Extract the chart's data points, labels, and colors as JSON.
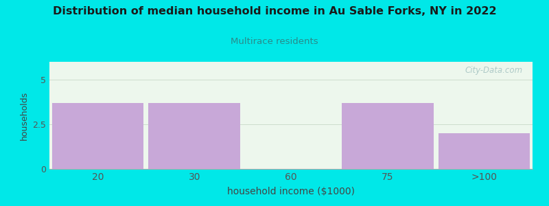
{
  "title": "Distribution of median household income in Au Sable Forks, NY in 2022",
  "subtitle": "Multirace residents",
  "xlabel": "household income ($1000)",
  "ylabel": "households",
  "categories": [
    "20",
    "30",
    "60",
    "75",
    ">100"
  ],
  "values": [
    3.7,
    3.7,
    0,
    3.7,
    2.0
  ],
  "bar_color": "#c8a8d8",
  "background_color": "#00e8e8",
  "plot_bg_color": "#edf7ed",
  "title_color": "#1a1a1a",
  "subtitle_color": "#2a8a8a",
  "axis_label_color": "#444444",
  "tick_color": "#555555",
  "ylim": [
    0,
    6
  ],
  "yticks": [
    0,
    2.5,
    5
  ],
  "watermark": "City-Data.com",
  "bar_width": 0.95
}
